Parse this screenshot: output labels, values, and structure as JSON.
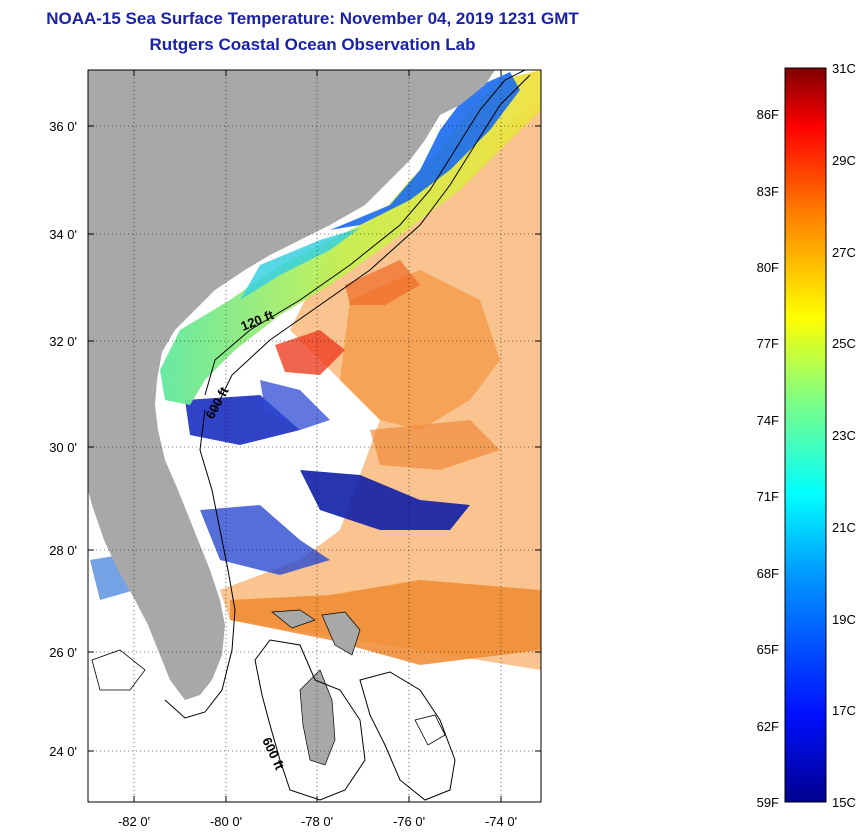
{
  "header": {
    "title": "NOAA-15 Sea Surface Temperature:  November 04, 2019 1231 GMT",
    "subtitle": "Rutgers Coastal Ocean Observation Lab"
  },
  "map": {
    "lat_ticks": [
      "36 0'",
      "34 0'",
      "32 0'",
      "30 0'",
      "28 0'",
      "26 0'",
      "24 0'"
    ],
    "lon_ticks": [
      "-82 0'",
      "-80 0'",
      "-78 0'",
      "-76 0'",
      "-74 0'"
    ],
    "contour_labels": [
      "120 ft",
      "600 ft",
      "600 ft"
    ],
    "colors": {
      "land": "#a8a8a8",
      "no_data": "#ffffff",
      "contour": "#000000"
    }
  },
  "colorbar": {
    "fahrenheit_labels": [
      "86F",
      "83F",
      "80F",
      "77F",
      "74F",
      "71F",
      "68F",
      "65F",
      "62F",
      "59F"
    ],
    "celsius_labels": [
      "31C",
      "29C",
      "27C",
      "25C",
      "23C",
      "21C",
      "19C",
      "17C",
      "15C"
    ]
  }
}
